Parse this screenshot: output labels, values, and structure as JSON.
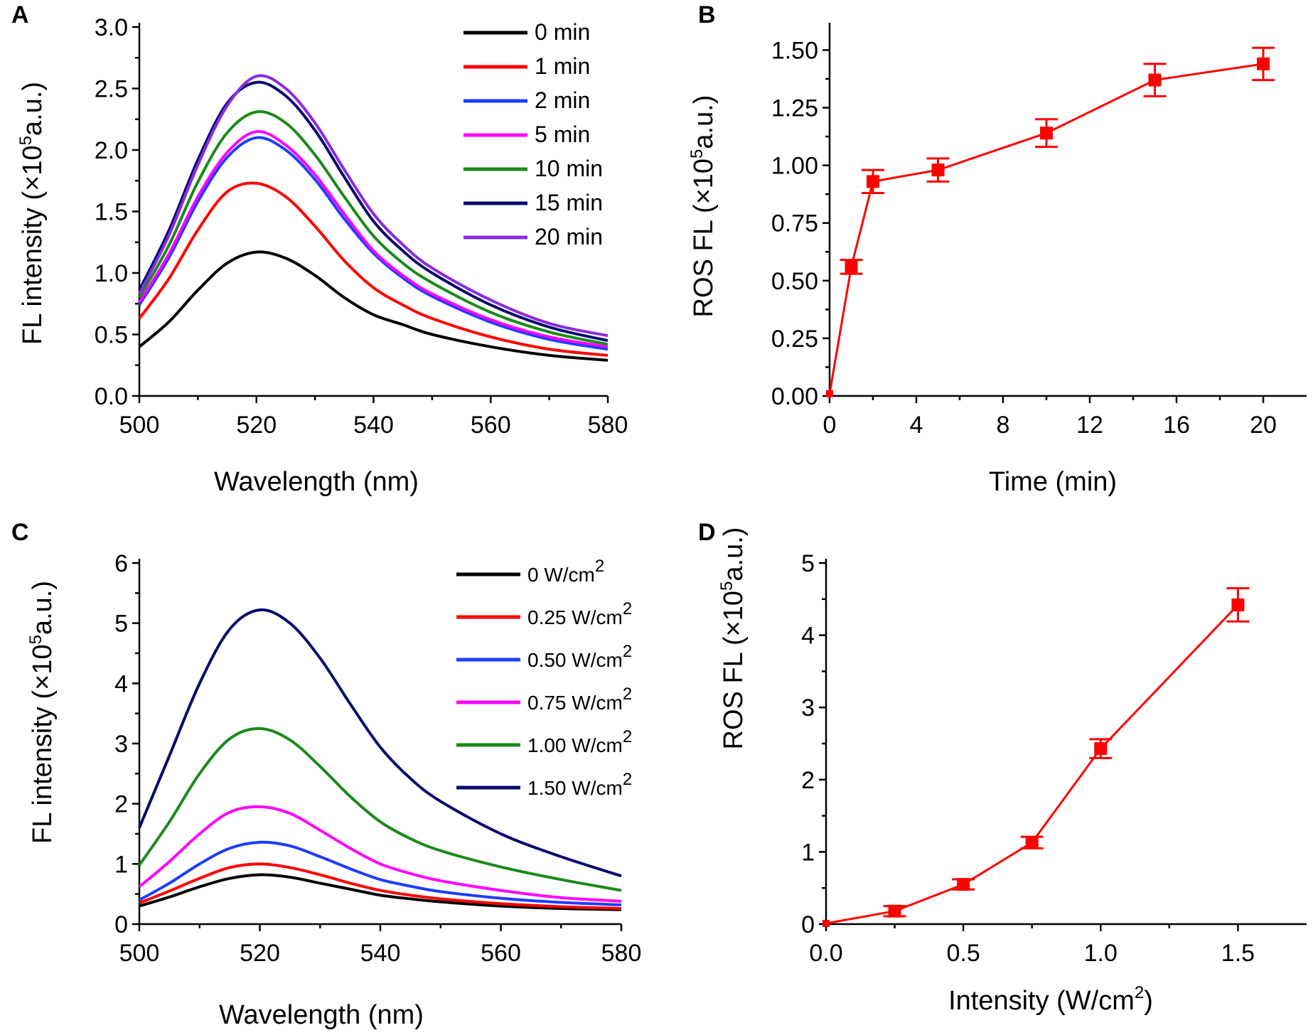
{
  "figure": {
    "chart_data": [
      {
        "panel": "A",
        "type": "line",
        "xlabel": "Wavelength (nm)",
        "ylabel": "FL intensity (×10⁵a.u.)",
        "xlim": [
          500,
          580
        ],
        "ylim": [
          0,
          3
        ],
        "xticks": [
          "500",
          "520",
          "540",
          "560",
          "580"
        ],
        "yticks": [
          "0.0",
          "0.5",
          "1.0",
          "1.5",
          "2.0",
          "2.5",
          "3.0"
        ],
        "legend_position": "top-right",
        "x": [
          500,
          505,
          510,
          515,
          520,
          525,
          530,
          535,
          540,
          545,
          550,
          560,
          570,
          580
        ],
        "series": [
          {
            "name": "0 min",
            "color": "#000000",
            "values": [
              0.4,
              0.6,
              0.86,
              1.08,
              1.17,
              1.12,
              0.98,
              0.8,
              0.66,
              0.58,
              0.5,
              0.4,
              0.33,
              0.29
            ]
          },
          {
            "name": "1 min",
            "color": "#ff0000",
            "values": [
              0.63,
              0.95,
              1.35,
              1.66,
              1.73,
              1.62,
              1.38,
              1.1,
              0.88,
              0.74,
              0.63,
              0.48,
              0.38,
              0.33
            ]
          },
          {
            "name": "2 min",
            "color": "#1e3cff",
            "values": [
              0.74,
              1.12,
              1.58,
              1.94,
              2.1,
              2.0,
              1.76,
              1.44,
              1.16,
              0.96,
              0.81,
              0.6,
              0.46,
              0.38
            ]
          },
          {
            "name": "5 min",
            "color": "#ff00ff",
            "values": [
              0.76,
              1.15,
              1.62,
              1.98,
              2.15,
              2.04,
              1.8,
              1.48,
              1.18,
              0.98,
              0.83,
              0.62,
              0.48,
              0.4
            ]
          },
          {
            "name": "10 min",
            "color": "#1a8a1a",
            "values": [
              0.8,
              1.22,
              1.74,
              2.14,
              2.31,
              2.22,
              1.96,
              1.62,
              1.3,
              1.08,
              0.92,
              0.68,
              0.52,
              0.42
            ]
          },
          {
            "name": "15 min",
            "color": "#0a0a6e",
            "values": [
              0.86,
              1.34,
              1.92,
              2.38,
              2.55,
              2.44,
              2.16,
              1.78,
              1.42,
              1.18,
              1.0,
              0.74,
              0.56,
              0.45
            ]
          },
          {
            "name": "20 min",
            "color": "#8a2be2",
            "values": [
              0.83,
              1.3,
              1.88,
              2.36,
              2.6,
              2.5,
              2.22,
              1.84,
              1.48,
              1.23,
              1.04,
              0.78,
              0.59,
              0.49
            ]
          }
        ]
      },
      {
        "panel": "B",
        "type": "scatter",
        "xlabel": "Time (min)",
        "ylabel": "ROS FL (×10⁵a.u.)",
        "xlim": [
          0,
          22
        ],
        "ylim": [
          0,
          1.6
        ],
        "xticks": [
          "0",
          "4",
          "8",
          "12",
          "16",
          "20"
        ],
        "yticks": [
          "0.00",
          "0.25",
          "0.50",
          "0.75",
          "1.00",
          "1.25",
          "1.50"
        ],
        "color": "#ff0000",
        "x": [
          0,
          1,
          2,
          5,
          10,
          15,
          20
        ],
        "y": [
          0.01,
          0.56,
          0.93,
          0.98,
          1.14,
          1.37,
          1.44
        ],
        "error": [
          0.0,
          0.03,
          0.05,
          0.05,
          0.06,
          0.07,
          0.07
        ]
      },
      {
        "panel": "C",
        "type": "line",
        "xlabel": "Wavelength (nm)",
        "ylabel": "FL intensity (×10⁵a.u.)",
        "xlim": [
          500,
          580
        ],
        "ylim": [
          0,
          6
        ],
        "xticks": [
          "500",
          "520",
          "540",
          "560",
          "580"
        ],
        "yticks": [
          "0",
          "1",
          "2",
          "3",
          "4",
          "5",
          "6"
        ],
        "legend_position": "top-right",
        "x": [
          500,
          505,
          510,
          515,
          520,
          525,
          530,
          535,
          540,
          545,
          550,
          560,
          570,
          580
        ],
        "series": [
          {
            "name": "0 W/cm",
            "color": "#000000",
            "values": [
              0.3,
              0.45,
              0.62,
              0.76,
              0.82,
              0.78,
              0.68,
              0.58,
              0.48,
              0.42,
              0.37,
              0.3,
              0.26,
              0.24
            ]
          },
          {
            "name": "0.25 W/cm",
            "color": "#ff0000",
            "values": [
              0.35,
              0.55,
              0.76,
              0.94,
              1.0,
              0.94,
              0.82,
              0.68,
              0.56,
              0.48,
              0.42,
              0.34,
              0.29,
              0.26
            ]
          },
          {
            "name": "0.50 W/cm",
            "color": "#1e3cff",
            "values": [
              0.4,
              0.68,
              1.0,
              1.26,
              1.36,
              1.3,
              1.12,
              0.92,
              0.74,
              0.63,
              0.54,
              0.43,
              0.36,
              0.32
            ]
          },
          {
            "name": "0.75 W/cm",
            "color": "#ff00ff",
            "values": [
              0.62,
              1.04,
              1.5,
              1.86,
              1.95,
              1.84,
              1.56,
              1.26,
              1.0,
              0.84,
              0.72,
              0.56,
              0.44,
              0.38
            ]
          },
          {
            "name": "1.00 W/cm",
            "color": "#1a8a1a",
            "values": [
              0.98,
              1.7,
              2.5,
              3.08,
              3.25,
              3.06,
              2.62,
              2.12,
              1.7,
              1.42,
              1.22,
              0.95,
              0.74,
              0.56
            ]
          },
          {
            "name": "1.50 W/cm",
            "color": "#0a0a6e",
            "values": [
              1.6,
              2.8,
              4.0,
              4.9,
              5.22,
              5.0,
              4.42,
              3.66,
              2.94,
              2.42,
              2.04,
              1.5,
              1.12,
              0.8
            ]
          }
        ]
      },
      {
        "panel": "D",
        "type": "scatter",
        "xlabel": "Intensity (W/cm",
        "ylabel": "ROS FL (×10⁵a.u.)",
        "xlim": [
          0,
          1.75
        ],
        "ylim": [
          0,
          5
        ],
        "xticks": [
          "0.0",
          "0.5",
          "1.0",
          "1.5"
        ],
        "yticks": [
          "0",
          "1",
          "2",
          "3",
          "4",
          "5"
        ],
        "color": "#ff0000",
        "x": [
          0,
          0.25,
          0.5,
          0.75,
          1.0,
          1.5
        ],
        "y": [
          0.01,
          0.18,
          0.55,
          1.13,
          2.43,
          4.42
        ],
        "error": [
          0.0,
          0.07,
          0.07,
          0.08,
          0.13,
          0.23
        ]
      }
    ]
  },
  "labels": {
    "panel_a": "A",
    "panel_b": "B",
    "panel_c": "C",
    "panel_d": "D",
    "ylabel_fl_pre": "FL intensity (×10",
    "ylabel_ros_pre": "ROS FL (×10",
    "ylabel_exp": "5",
    "ylabel_post": "a.u.)",
    "xlabel_wavelength": "Wavelength (nm)",
    "xlabel_time": "Time (min)",
    "xlabel_intensity_pre": "Intensity (W/cm",
    "xlabel_intensity_exp": "2",
    "xlabel_intensity_post": ")",
    "legend_unit_exp": "2"
  }
}
